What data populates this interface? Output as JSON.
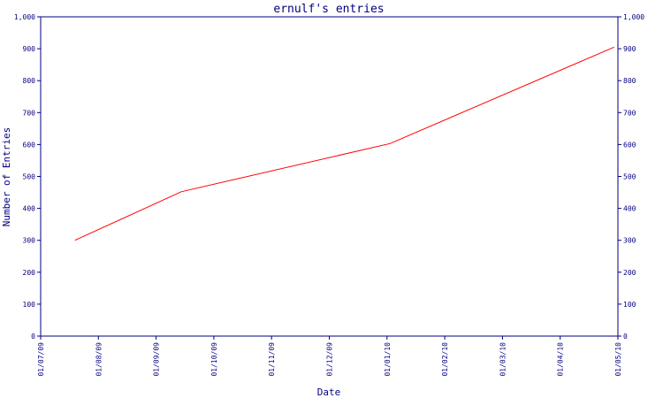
{
  "chart_data": {
    "type": "line",
    "title": "ernulf's entries",
    "xlabel": "Date",
    "ylabel": "Number of Entries",
    "x_ticks": [
      "01/07/09",
      "01/08/09",
      "01/09/09",
      "01/10/09",
      "01/11/09",
      "01/12/09",
      "01/01/10",
      "01/02/10",
      "01/03/10",
      "01/04/10",
      "01/05/10"
    ],
    "y_ticks": [
      "0",
      "100",
      "200",
      "300",
      "400",
      "500",
      "600",
      "700",
      "800",
      "900",
      "1,000"
    ],
    "ylim": [
      0,
      1000
    ],
    "xlim": [
      "2009-07-01",
      "2010-05-01"
    ],
    "grid": false,
    "series": [
      {
        "color": "#ff0000",
        "points": [
          {
            "x": "2009-07-19",
            "y": 300
          },
          {
            "x": "2009-09-13",
            "y": 452
          },
          {
            "x": "2010-01-01",
            "y": 603
          },
          {
            "x": "2010-04-29",
            "y": 905
          }
        ]
      }
    ],
    "axis_color": "#000080"
  }
}
